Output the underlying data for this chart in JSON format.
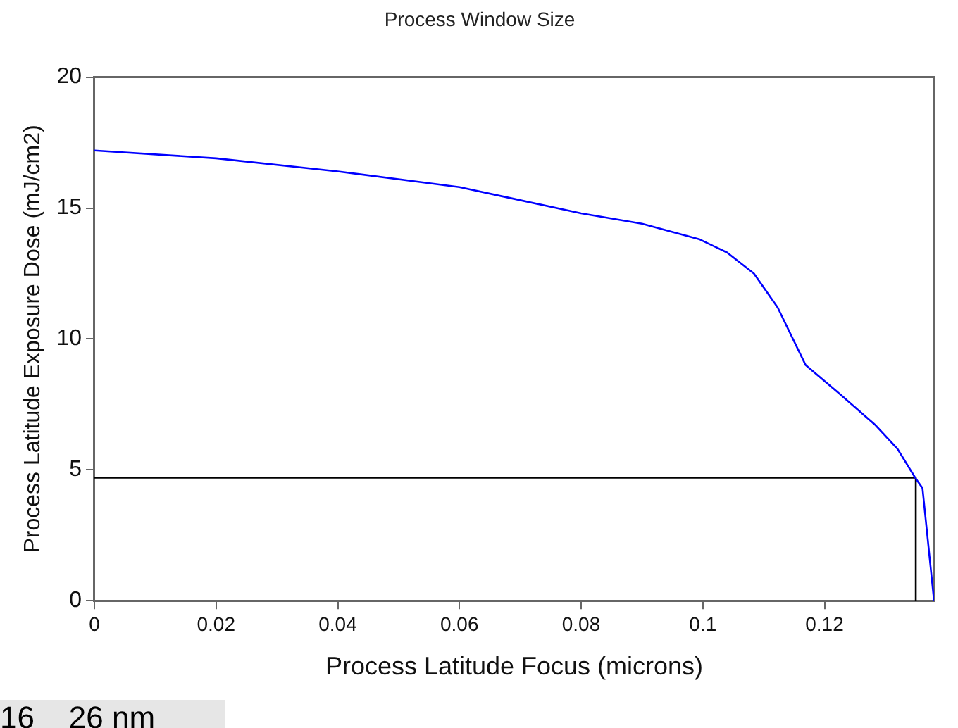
{
  "chart_data": {
    "type": "line",
    "title": "Process Window Size",
    "xlabel": "Process Latitude Focus (microns)",
    "ylabel": "Process Latitude Exposure Dose (mJ/cm2)",
    "xlim": [
      0,
      0.138
    ],
    "xticks": [
      0,
      0.02,
      0.04,
      0.06,
      0.08,
      0.1,
      0.12
    ],
    "ylim": [
      0,
      20
    ],
    "yticks": [
      0,
      5,
      10,
      15,
      20
    ],
    "grid": false,
    "legend": false,
    "marker": "none",
    "line_style": "solid",
    "annotations": [
      "16    26 nm"
    ],
    "series": [
      {
        "color": "#0000ff",
        "x": [
          0,
          0.02,
          0.04,
          0.06,
          0.068,
          0.08,
          0.09,
          0.0995,
          0.104,
          0.1084,
          0.1123,
          0.1169,
          0.1225,
          0.1284,
          0.132,
          0.1349,
          0.1361,
          0.138
        ],
        "values": [
          17.2,
          16.9,
          16.4,
          15.8,
          15.4,
          14.8,
          14.4,
          13.8,
          13.3,
          12.5,
          11.2,
          9.0,
          7.9,
          6.7,
          5.8,
          4.7,
          4.3,
          0
        ]
      },
      {
        "color": "#000000",
        "x": [
          0,
          0.135,
          0.135
        ],
        "values": [
          4.7,
          4.7,
          0
        ]
      }
    ]
  }
}
